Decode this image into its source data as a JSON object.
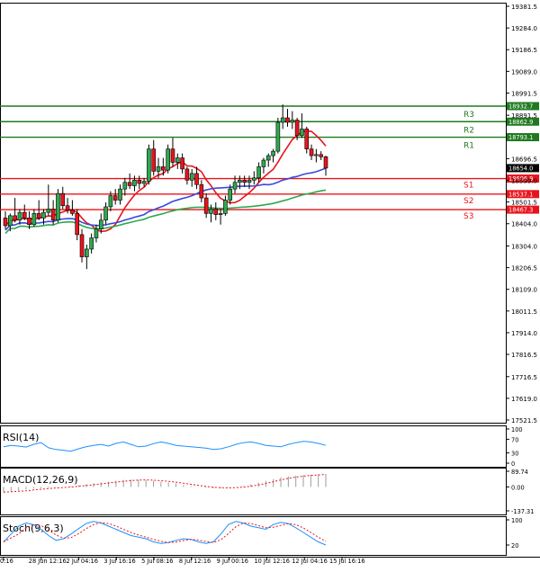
{
  "chart_data": {
    "type": "candlestick",
    "price_axis": {
      "ticks": [
        "19381.5",
        "19284.0",
        "19186.5",
        "19089.0",
        "18991.5",
        "18891.5",
        "18696.5",
        "18599.0",
        "18501.5",
        "18404.0",
        "18304.0",
        "18206.5",
        "18109.0",
        "18011.5",
        "17914.0",
        "17816.5",
        "17716.5",
        "17619.0",
        "17521.5"
      ],
      "range": [
        17521.5,
        19381.5
      ]
    },
    "current_price": {
      "label": "18654.0",
      "value": 18654.0,
      "color": "#000000"
    },
    "levels": [
      {
        "name": "R3",
        "value": 18932.7,
        "label": "18932.7",
        "color": "#1f7a1f"
      },
      {
        "name": "R2",
        "value": 18862.9,
        "label": "18862.9",
        "color": "#1f7a1f"
      },
      {
        "name": "R1",
        "value": 18793.1,
        "label": "18793.1",
        "color": "#1f7a1f"
      },
      {
        "name": "S1",
        "value": 18606.9,
        "label": "18606.9",
        "color": "#e8141c"
      },
      {
        "name": "S2",
        "value": 18537.1,
        "label": "18537.1",
        "color": "#e8141c"
      },
      {
        "name": "S3",
        "value": 18467.3,
        "label": "18467.3",
        "color": "#e8141c"
      }
    ],
    "time_axis": [
      "0:16",
      "28 Jun 12:16",
      "2 Jul 04:16",
      "3 Jul 16:16",
      "5 Jul 08:16",
      "8 Jul 12:16",
      "9 Jul 00:16",
      "10 Jul 12:16",
      "12 Jul 04:16",
      "15 Jul 16:16"
    ],
    "candles": [
      [
        18430,
        18460,
        18380,
        18395
      ],
      [
        18395,
        18450,
        18370,
        18440
      ],
      [
        18440,
        18520,
        18410,
        18420
      ],
      [
        18420,
        18470,
        18400,
        18455
      ],
      [
        18455,
        18490,
        18420,
        18430
      ],
      [
        18430,
        18460,
        18380,
        18400
      ],
      [
        18400,
        18470,
        18390,
        18450
      ],
      [
        18450,
        18510,
        18420,
        18430
      ],
      [
        18430,
        18470,
        18400,
        18455
      ],
      [
        18455,
        18580,
        18440,
        18470
      ],
      [
        18470,
        18510,
        18400,
        18420
      ],
      [
        18420,
        18560,
        18410,
        18540
      ],
      [
        18540,
        18570,
        18470,
        18485
      ],
      [
        18485,
        18520,
        18450,
        18465
      ],
      [
        18465,
        18510,
        18440,
        18450
      ],
      [
        18450,
        18470,
        18330,
        18355
      ],
      [
        18355,
        18380,
        18230,
        18255
      ],
      [
        18255,
        18310,
        18200,
        18290
      ],
      [
        18290,
        18360,
        18270,
        18340
      ],
      [
        18340,
        18400,
        18320,
        18380
      ],
      [
        18380,
        18450,
        18360,
        18420
      ],
      [
        18420,
        18500,
        18400,
        18480
      ],
      [
        18480,
        18550,
        18460,
        18530
      ],
      [
        18530,
        18560,
        18490,
        18510
      ],
      [
        18510,
        18580,
        18490,
        18560
      ],
      [
        18560,
        18610,
        18530,
        18590
      ],
      [
        18590,
        18630,
        18560,
        18575
      ],
      [
        18575,
        18620,
        18550,
        18600
      ],
      [
        18600,
        18620,
        18560,
        18585
      ],
      [
        18585,
        18610,
        18570,
        18595
      ],
      [
        18595,
        18760,
        18580,
        18740
      ],
      [
        18740,
        18780,
        18620,
        18640
      ],
      [
        18640,
        18700,
        18610,
        18660
      ],
      [
        18660,
        18700,
        18620,
        18645
      ],
      [
        18645,
        18760,
        18630,
        18740
      ],
      [
        18740,
        18790,
        18660,
        18680
      ],
      [
        18680,
        18720,
        18650,
        18700
      ],
      [
        18700,
        18720,
        18630,
        18650
      ],
      [
        18650,
        18660,
        18580,
        18600
      ],
      [
        18600,
        18650,
        18570,
        18630
      ],
      [
        18630,
        18660,
        18560,
        18580
      ],
      [
        18580,
        18600,
        18500,
        18520
      ],
      [
        18520,
        18540,
        18430,
        18450
      ],
      [
        18450,
        18490,
        18410,
        18470
      ],
      [
        18470,
        18500,
        18420,
        18445
      ],
      [
        18445,
        18470,
        18400,
        18450
      ],
      [
        18450,
        18530,
        18440,
        18510
      ],
      [
        18510,
        18580,
        18490,
        18560
      ],
      [
        18560,
        18620,
        18540,
        18590
      ],
      [
        18590,
        18620,
        18560,
        18600
      ],
      [
        18600,
        18620,
        18570,
        18590
      ],
      [
        18590,
        18620,
        18560,
        18600
      ],
      [
        18600,
        18640,
        18580,
        18610
      ],
      [
        18610,
        18680,
        18590,
        18660
      ],
      [
        18660,
        18700,
        18630,
        18690
      ],
      [
        18690,
        18720,
        18660,
        18710
      ],
      [
        18710,
        18740,
        18680,
        18730
      ],
      [
        18730,
        18880,
        18720,
        18860
      ],
      [
        18860,
        18940,
        18830,
        18880
      ],
      [
        18880,
        18920,
        18840,
        18860
      ],
      [
        18860,
        18910,
        18830,
        18870
      ],
      [
        18870,
        18880,
        18780,
        18800
      ],
      [
        18800,
        18900,
        18790,
        18830
      ],
      [
        18830,
        18840,
        18720,
        18740
      ],
      [
        18740,
        18760,
        18690,
        18710
      ],
      [
        18710,
        18740,
        18680,
        18715
      ],
      [
        18715,
        18730,
        18690,
        18705
      ],
      [
        18705,
        18710,
        18620,
        18654
      ]
    ],
    "indicators": [
      {
        "name": "RSI(14)",
        "axis_ticks": [
          "100",
          "70",
          "30",
          "0"
        ],
        "range": [
          0,
          100
        ],
        "color": "#1e90ff",
        "values": [
          48,
          52,
          50,
          47,
          55,
          60,
          45,
          40,
          38,
          35,
          42,
          48,
          52,
          55,
          50,
          58,
          62,
          55,
          48,
          50,
          57,
          62,
          58,
          52,
          50,
          48,
          46,
          44,
          40,
          42,
          48,
          55,
          60,
          62,
          58,
          52,
          50,
          48,
          55,
          60,
          64,
          62,
          58,
          52
        ]
      },
      {
        "name": "MACD(12,26,9)",
        "axis_ticks": [
          "89.74",
          "0.00",
          "-137.31"
        ],
        "range": [
          -137.31,
          89.74
        ],
        "color": "#9e9e9e",
        "values": [
          -30,
          -25,
          -20,
          -15,
          -10,
          -8,
          -5,
          -2,
          0,
          5,
          10,
          15,
          20,
          25,
          30,
          35,
          40,
          42,
          40,
          38,
          35,
          30,
          25,
          20,
          10,
          5,
          0,
          -5,
          -8,
          -6,
          -3,
          0,
          5,
          15,
          25,
          35,
          45,
          55,
          60,
          65,
          68,
          70,
          72,
          74
        ]
      },
      {
        "name": "Stoch(9,6,3)",
        "axis_ticks": [
          "100",
          "20"
        ],
        "range": [
          0,
          100
        ],
        "color": "#1e90ff",
        "values": [
          30,
          55,
          80,
          90,
          85,
          70,
          50,
          35,
          40,
          55,
          72,
          88,
          95,
          90,
          80,
          70,
          60,
          50,
          45,
          40,
          30,
          25,
          28,
          35,
          40,
          38,
          30,
          25,
          30,
          55,
          85,
          95,
          90,
          80,
          75,
          70,
          85,
          92,
          88,
          75,
          60,
          45,
          30,
          20
        ]
      }
    ]
  }
}
